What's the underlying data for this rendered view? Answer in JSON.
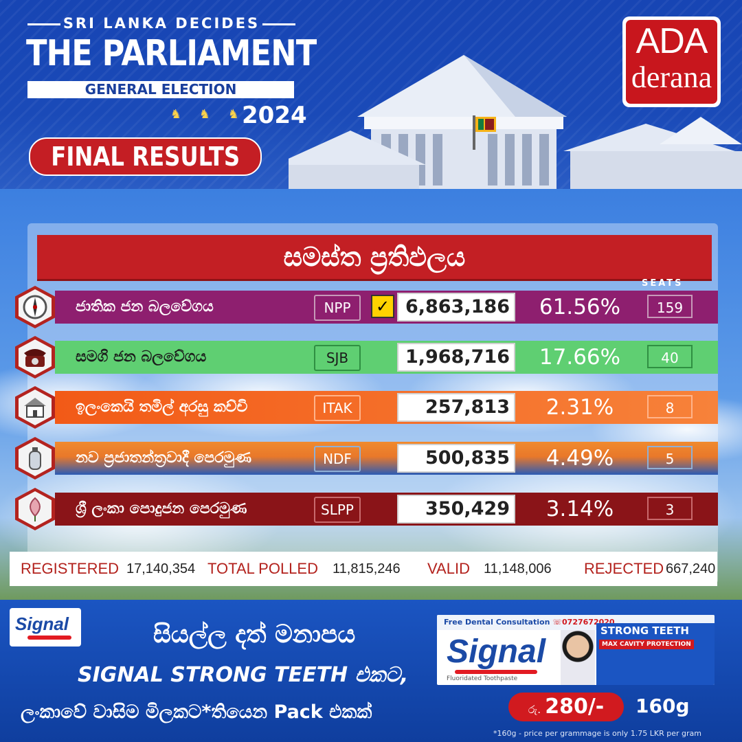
{
  "header": {
    "kicker": "SRI LANKA DECIDES",
    "title": "THE PARLIAMENT",
    "subtitle": "GENERAL ELECTION",
    "year": "2024",
    "badge": "FINAL RESULTS",
    "lions_glyph": "♞ ♞ ♞",
    "logo_top": "ADA",
    "logo_bottom": "derana"
  },
  "results": {
    "heading": "සමස්ත ප්‍රතිඵලය",
    "seats_label": "SEATS",
    "parties": [
      {
        "name": "ජාතික ජන බලවේගය",
        "abbr": "NPP",
        "votes": "6,863,186",
        "percent": "61.56%",
        "seats": "159",
        "winner": true,
        "icon": "compass-icon",
        "colors": {
          "band": "#8e1f6f",
          "name": "#ffffff",
          "abbr_fg": "#ffffff",
          "abbr_border": "#c79ab9",
          "seat_fg": "#ffffff",
          "seat_border": "#c79ab9"
        }
      },
      {
        "name": "සමගි ජන බලවේගය",
        "abbr": "SJB",
        "votes": "1,968,716",
        "percent": "17.66%",
        "seats": "40",
        "winner": false,
        "icon": "telephone-icon",
        "colors": {
          "band": "#5fcf72",
          "name": "#1b1b1b",
          "abbr_fg": "#1b1b1b",
          "abbr_border": "#2f8f42",
          "seat_fg": "#ffffff",
          "seat_border": "#2f8f42"
        }
      },
      {
        "name": "ඉලංකෙයි තමිල් අරසු කච්චි",
        "abbr": "ITAK",
        "votes": "257,813",
        "percent": "2.31%",
        "seats": "8",
        "winner": false,
        "icon": "house-icon",
        "colors": {
          "band": "#f3651c",
          "name": "#ffffff",
          "abbr_fg": "#ffffff",
          "abbr_border": "#ffb48a",
          "seat_fg": "#ffffff",
          "seat_border": "#ffb48a"
        }
      },
      {
        "name": "නව ප්‍රජාතන්ත්‍රවාදී පෙරමුණ",
        "abbr": "NDF",
        "votes": "500,835",
        "percent": "4.49%",
        "seats": "5",
        "winner": false,
        "icon": "gas-cylinder-icon",
        "colors": {
          "band": "#e9782a",
          "name": "#ffffff",
          "abbr_fg": "#ffffff",
          "abbr_border": "#8fb0d6",
          "seat_fg": "#ffffff",
          "seat_border": "#8fb0d6"
        }
      },
      {
        "name": "ශ්‍රී ලංකා පොදුජන පෙරමුණ",
        "abbr": "SLPP",
        "votes": "350,429",
        "percent": "3.14%",
        "seats": "3",
        "winner": false,
        "icon": "lotus-bud-icon",
        "colors": {
          "band": "#8a1418",
          "name": "#ffffff",
          "abbr_fg": "#ffffff",
          "abbr_border": "#c96a6d",
          "seat_fg": "#ffffff",
          "seat_border": "#c96a6d"
        }
      }
    ],
    "winner_mark": "✓"
  },
  "stats": {
    "registered_label": "REGISTERED",
    "registered": "17,140,354",
    "polled_label": "TOTAL POLLED",
    "polled": "11,815,246",
    "valid_label": "VALID",
    "valid": "11,148,006",
    "rejected_label": "REJECTED",
    "rejected": "667,240"
  },
  "ad": {
    "logo": "Signal",
    "line1": "සියල්ල දත් මනාපය",
    "line2": "SIGNAL STRONG TEETH එකට,",
    "line3": "ලංකාවේ වාසිම මිලකට*තියෙන Pack එකක්",
    "pack_top": "Free Dental Consultation",
    "pack_phone": "0727672020",
    "pack_brand": "Signal",
    "pack_sub": "Fluoridated Toothpaste",
    "pack_title": "STRONG TEETH",
    "pack_claim": "MAX CAVITY PROTECTION",
    "price_currency": "රු.",
    "price": "280/-",
    "weight": "160g",
    "footnote": "*160g - price per grammage is only 1.75 LKR per gram"
  }
}
